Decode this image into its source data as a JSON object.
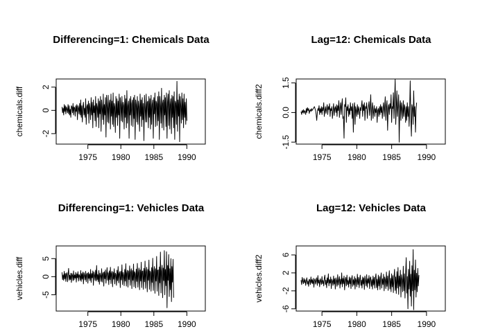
{
  "chart_data": [
    {
      "type": "line",
      "title": "Differencing=1: Chemicals Data",
      "ylabel": "chemicals.diff",
      "xlabel": "",
      "xlim": [
        1970.2,
        1992.8
      ],
      "ylim": [
        -2.9,
        2.7
      ],
      "x_ticks": [
        1975,
        1980,
        1985,
        1990
      ],
      "x_tick_labels": [
        "1975",
        "1980",
        "1985",
        "1990"
      ],
      "y_ticks": [
        -2,
        0,
        2
      ],
      "y_tick_labels": [
        "-2",
        "0",
        "2"
      ],
      "series": [
        {
          "x_start": 1971.083,
          "x_step": 0.08333,
          "values": [
            0.3,
            -0.2,
            0.2,
            -0.4,
            0.5,
            -0.1,
            0.4,
            -0.3,
            0.3,
            0.1,
            -0.2,
            0.5,
            -0.3,
            0.4,
            -0.4,
            0.1,
            -0.6,
            0.4,
            0.3,
            -0.2,
            0.6,
            -0.4,
            0.3,
            0.2,
            -0.5,
            0.4,
            -0.1,
            0.5,
            -0.8,
            0.4,
            0.2,
            -0.3,
            0.6,
            -0.4,
            0.9,
            -0.6,
            0.4,
            -1.0,
            0.3,
            0.7,
            -0.4,
            0.2,
            -0.6,
            1.0,
            -1.2,
            0.3,
            0.5,
            -0.3,
            0.8,
            -1.1,
            0.6,
            0.2,
            -0.8,
            1.1,
            -0.4,
            0.7,
            -1.5,
            0.9,
            -0.2,
            0.4,
            -0.9,
            1.2,
            -1.4,
            0.6,
            0.3,
            -0.6,
            1.0,
            -1.5,
            0.8,
            -0.3,
            1.2,
            -1.8,
            0.9,
            0.2,
            -0.8,
            1.4,
            -1.2,
            0.5,
            -0.4,
            1.1,
            -2.3,
            1.3,
            0.4,
            -1.0,
            1.3,
            -1.1,
            0.6,
            0.9,
            -1.6,
            1.4,
            -0.5,
            0.8,
            -1.2,
            1.5,
            -1.4,
            0.6,
            0.3,
            -1.9,
            1.2,
            -0.6,
            1.0,
            -1.3,
            0.8,
            -0.4,
            1.4,
            -2.4,
            1.1,
            0.5,
            -0.9,
            1.2,
            -1.0,
            0.7,
            0.4,
            -1.6,
            1.3,
            -0.6,
            1.0,
            -1.5,
            1.7,
            -1.1,
            0.4,
            0.8,
            -2.4,
            1.0,
            -0.4,
            1.2,
            -1.3,
            0.6,
            0.9,
            -1.4,
            1.1,
            -0.7,
            1.3,
            -2.5,
            0.9,
            0.5,
            -1.0,
            1.2,
            -1.2,
            0.8,
            0.3,
            -1.8,
            1.4,
            -0.5,
            0.9,
            -1.4,
            1.1,
            -0.8,
            0.6,
            -2.6,
            1.3,
            0.2,
            -1.0,
            1.4,
            -1.0,
            0.7,
            0.8,
            -1.5,
            1.2,
            -0.6,
            1.0,
            -1.6,
            1.3,
            -1.2,
            0.5,
            0.9,
            -2.4,
            1.1,
            -0.3,
            1.5,
            -1.4,
            0.8,
            0.6,
            -1.3,
            1.2,
            -0.9,
            1.6,
            -2.5,
            1.2,
            0.4,
            -1.1,
            1.9,
            -1.5,
            0.6,
            0.9,
            -1.7,
            1.3,
            -0.4,
            1.1,
            -1.4,
            1.5,
            -2.4,
            0.7,
            1.4,
            -1.3,
            1.7,
            -1.6,
            0.5,
            1.0,
            -2.0,
            1.3,
            -0.6,
            1.2,
            -1.5,
            1.6,
            -2.5,
            0.8,
            0.6,
            -1.2,
            2.5,
            -1.8,
            0.9,
            -0.5,
            1.4,
            -2.7,
            1.2,
            0.4,
            -1.1,
            1.5,
            -0.8,
            1.0,
            -1.5,
            1.4,
            -0.6,
            0.7,
            -1.2,
            1.0,
            -0.9
          ]
        }
      ]
    },
    {
      "type": "line",
      "title": "Lag=12: Chemicals Data",
      "ylabel": "chemicals.diff2",
      "xlabel": "",
      "xlim": [
        1971.3,
        1992.7
      ],
      "ylim": [
        -1.6,
        1.7
      ],
      "x_ticks": [
        1975,
        1980,
        1985,
        1990
      ],
      "x_tick_labels": [
        "1975",
        "1980",
        "1985",
        "1990"
      ],
      "y_ticks": [
        -1.5,
        0.0,
        1.5
      ],
      "y_tick_labels": [
        "-1.5",
        "0.0",
        "1.5"
      ],
      "series": [
        {
          "x_start": 1972.0,
          "x_step": 0.08333,
          "values": [
            0.05,
            -0.1,
            0.1,
            0.0,
            0.15,
            -0.05,
            0.1,
            0.05,
            -0.1,
            0.2,
            0.0,
            0.25,
            0.1,
            0.2,
            -0.05,
            0.1,
            0.15,
            0.05,
            0.2,
            0.1,
            0.15,
            0.2,
            0.25,
            0.3,
            0.2,
            0.1,
            -0.1,
            -0.4,
            0.0,
            0.2,
            0.1,
            0.35,
            -0.1,
            0.2,
            0.0,
            0.3,
            -0.1,
            0.25,
            0.1,
            0.5,
            -0.2,
            0.1,
            0.3,
            -0.05,
            0.2,
            0.4,
            -0.1,
            0.3,
            0.15,
            0.45,
            -0.2,
            0.2,
            0.1,
            0.3,
            -0.3,
            0.1,
            0.45,
            -0.15,
            0.2,
            0.3,
            0.0,
            0.4,
            -0.2,
            0.35,
            0.1,
            0.6,
            -0.25,
            0.2,
            0.5,
            -0.1,
            0.35,
            0.7,
            -0.3,
            -0.2,
            -1.3,
            0.4,
            0.3,
            0.75,
            -0.5,
            0.3,
            0.1,
            0.4,
            -0.2,
            0.2,
            -0.1,
            0.5,
            0.1,
            0.3,
            -0.3,
            0.45,
            -1.0,
            0.2,
            0.5,
            -0.6,
            0.3,
            0.1,
            -0.2,
            0.4,
            -0.1,
            0.3,
            0.1,
            -0.3,
            0.25,
            0.1,
            0.35,
            0.6,
            -0.2,
            0.4,
            0.1,
            0.5,
            -0.4,
            0.3,
            0.2,
            0.5,
            -0.3,
            0.1,
            0.3,
            0.55,
            -0.15,
            0.3,
            0.9,
            -0.4,
            0.2,
            0.5,
            -0.3,
            0.1,
            0.35,
            -0.2,
            0.2,
            0.0,
            0.3,
            -0.5,
            0.1,
            0.2,
            -0.2,
            0.3,
            -0.1,
            0.4,
            0.0,
            0.3,
            -0.3,
            0.2,
            0.5,
            -0.2,
            0.3,
            0.8,
            -0.4,
            0.3,
            0.6,
            -0.9,
            0.2,
            0.4,
            -0.1,
            0.45,
            0.2,
            0.9,
            -0.5,
            0.3,
            0.2,
            1.0,
            -0.3,
            0.5,
            1.7,
            -0.6,
            0.2,
            1.1,
            -0.2,
            0.3,
            0.9,
            -1.5,
            0.3,
            0.6,
            -0.4,
            0.5,
            0.2,
            -0.3,
            0.6,
            -0.2,
            0.4,
            0.2,
            -0.5,
            0.3,
            -0.4,
            0.5,
            -0.2,
            0.3,
            -0.7,
            0.2,
            1.6,
            -0.3,
            -1.2,
            0.4,
            0.2,
            -0.6,
            1.1,
            -0.2,
            0.3,
            -1.0,
            0.1,
            0.5
          ]
        }
      ]
    },
    {
      "type": "line",
      "title": "Differencing=1: Vehicles Data",
      "ylabel": "vehicles.diff",
      "xlabel": "",
      "xlim": [
        1970.2,
        1992.8
      ],
      "ylim": [
        -9.5,
        8.5
      ],
      "x_ticks": [
        1975,
        1980,
        1985,
        1990
      ],
      "x_tick_labels": [
        "1975",
        "1980",
        "1985",
        "1990"
      ],
      "y_ticks": [
        -5,
        0,
        5
      ],
      "y_tick_labels": [
        "-5",
        "0",
        "5"
      ],
      "series": [
        {
          "x_start": 1971.083,
          "x_step": 0.08333,
          "values": [
            1.2,
            -0.8,
            0.5,
            -1.0,
            1.5,
            -0.6,
            0.9,
            -1.3,
            0.7,
            1.1,
            -1.4,
            0.6,
            2.3,
            -1.0,
            0.4,
            -0.8,
            1.0,
            -1.6,
            0.9,
            0.3,
            -1.1,
            1.6,
            -0.9,
            0.5,
            -0.4,
            1.2,
            -1.5,
            0.8,
            -0.3,
            1.4,
            -1.2,
            0.6,
            0.2,
            -1.0,
            1.7,
            -1.3,
            0.9,
            -0.7,
            1.3,
            -2.0,
            1.1,
            0.4,
            -0.9,
            1.5,
            -1.4,
            0.7,
            1.0,
            -1.8,
            1.2,
            -0.5,
            0.8,
            -1.1,
            2.0,
            -1.6,
            0.9,
            -0.3,
            1.6,
            -2.4,
            1.3,
            0.5,
            -1.0,
            1.8,
            -1.2,
            3.1,
            -0.9,
            0.6,
            -1.4,
            1.7,
            -2.1,
            1.0,
            0.3,
            -1.3,
            2.2,
            -1.5,
            0.8,
            1.2,
            -2.6,
            1.4,
            -0.6,
            1.9,
            -1.8,
            0.7,
            2.5,
            -1.0,
            1.1,
            -2.2,
            1.6,
            -0.8,
            2.6,
            -1.9,
            0.9,
            1.5,
            -2.8,
            1.3,
            -0.7,
            2.2,
            -2.0,
            1.0,
            0.6,
            -2.4,
            1.8,
            -1.1,
            2.8,
            -1.7,
            0.8,
            1.4,
            -3.0,
            1.5,
            -0.9,
            3.3,
            -2.2,
            1.2,
            0.4,
            -2.5,
            2.0,
            -1.2,
            3.6,
            -2.6,
            1.0,
            1.8,
            -2.9,
            1.6,
            -0.8,
            3.0,
            -2.4,
            1.3,
            2.2,
            -3.3,
            1.7,
            -1.0,
            3.5,
            -2.8,
            1.4,
            0.9,
            -3.1,
            2.1,
            -1.3,
            3.7,
            -2.9,
            1.1,
            2.4,
            -3.6,
            1.9,
            -1.2,
            4.0,
            -3.0,
            1.5,
            1.6,
            -3.5,
            2.3,
            -1.4,
            4.3,
            -3.2,
            1.3,
            2.6,
            -4.2,
            2.0,
            -1.0,
            4.6,
            -3.5,
            1.6,
            1.2,
            -4.0,
            2.5,
            -1.6,
            5.1,
            -3.8,
            1.4,
            2.8,
            -4.6,
            2.2,
            -1.2,
            5.6,
            -4.0,
            1.8,
            1.9,
            -5.2,
            2.7,
            -1.7,
            6.8,
            -4.5,
            1.5,
            3.2,
            -5.8,
            2.4,
            -1.1,
            7.2,
            -5.0,
            2.0,
            -2.5,
            6.9,
            -8.6,
            3.1,
            -1.0,
            6.1,
            -5.5,
            2.2,
            -3.6,
            5.0,
            -6.9,
            2.8,
            -1.5,
            4.8,
            -5.8
          ]
        }
      ]
    },
    {
      "type": "line",
      "title": "Lag=12: Vehicles Data",
      "ylabel": "vehicles.diff2",
      "xlabel": "",
      "xlim": [
        1971.3,
        1992.7
      ],
      "ylim": [
        -6.5,
        8.0
      ],
      "x_ticks": [
        1975,
        1980,
        1985,
        1990
      ],
      "x_tick_labels": [
        "1975",
        "1980",
        "1985",
        "1990"
      ],
      "y_ticks": [
        -6,
        -2,
        2,
        6
      ],
      "y_tick_labels": [
        "-6",
        "-2",
        "2",
        "6"
      ],
      "series": [
        {
          "x_start": 1972.0,
          "x_step": 0.08333,
          "values": [
            0.4,
            -0.6,
            1.0,
            0.2,
            -0.4,
            0.8,
            -0.2,
            0.5,
            -0.8,
            0.3,
            0.9,
            -0.5,
            0.2,
            -1.0,
            0.6,
            0.4,
            -0.6,
            1.1,
            -0.3,
            0.5,
            -0.4,
            0.8,
            -1.2,
            0.3,
            0.7,
            -0.5,
            0.2,
            0.9,
            -0.8,
            1.4,
            -0.3,
            0.4,
            -1.1,
            0.7,
            0.2,
            -0.6,
            1.2,
            -0.4,
            0.3,
            -0.9,
            0.8,
            1.5,
            -0.6,
            0.4,
            -1.3,
            0.9,
            -0.2,
            1.8,
            -0.9,
            0.5,
            -0.3,
            1.1,
            -1.5,
            0.6,
            0.2,
            -0.8,
            1.3,
            -0.5,
            0.7,
            -1.6,
            0.9,
            0.3,
            -1.0,
            1.6,
            -0.7,
            0.4,
            1.2,
            -1.4,
            0.6,
            -0.5,
            2.0,
            -1.1,
            0.8,
            -0.4,
            1.3,
            -1.8,
            0.5,
            1.0,
            -0.9,
            1.5,
            -0.6,
            0.3,
            -1.2,
            1.1,
            -0.4,
            0.9,
            -1.5,
            0.7,
            1.4,
            -1.0,
            0.5,
            -0.7,
            1.2,
            -1.6,
            0.8,
            0.3,
            -1.1,
            1.7,
            -0.6,
            1.0,
            -1.3,
            0.6,
            1.5,
            -0.8,
            0.4,
            -1.4,
            1.1,
            -0.5,
            0.9,
            -1.7,
            1.3,
            0.2,
            -0.9,
            1.6,
            -1.2,
            0.7,
            -0.3,
            1.4,
            -1.5,
            0.8,
            1.1,
            -1.0,
            0.5,
            -1.6,
            1.3,
            -0.7,
            1.0,
            -1.4,
            0.9,
            1.8,
            -1.3,
            0.6,
            -1.8,
            1.5,
            -0.9,
            1.2,
            -1.7,
            0.8,
            2.0,
            -1.4,
            0.7,
            -0.6,
            1.7,
            -2.0,
            1.1,
            0.5,
            -1.5,
            2.2,
            -1.0,
            1.3,
            -1.9,
            0.9,
            2.5,
            -1.6,
            0.8,
            -2.2,
            1.8,
            -1.1,
            1.4,
            -2.4,
            1.0,
            2.8,
            -1.9,
            1.1,
            -2.6,
            2.3,
            -1.4,
            3.2,
            -2.8,
            1.3,
            -1.0,
            2.6,
            -3.4,
            1.6,
            0.5,
            -2.2,
            3.5,
            -2.0,
            1.8,
            -3.6,
            1.4,
            5.4,
            -2.5,
            1.2,
            -6.0,
            2.8,
            -1.6,
            4.6,
            -3.2,
            1.7,
            -5.4,
            3.6,
            -2.0,
            7.2,
            -6.2,
            2.6,
            -1.8,
            4.9,
            -3.4,
            1.9,
            -2.2,
            3.0,
            -0.9,
            1.5
          ]
        }
      ]
    }
  ]
}
